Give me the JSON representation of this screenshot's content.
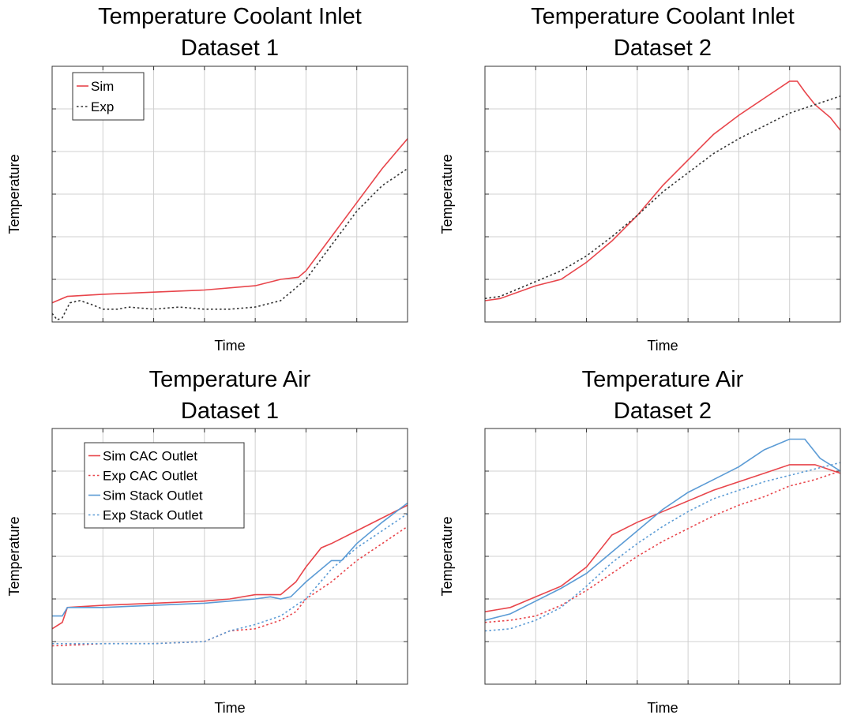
{
  "chart_data": [
    {
      "type": "line",
      "title": [
        "Temperature Coolant Inlet",
        "Dataset 1"
      ],
      "xlabel": "Time",
      "ylabel": "Temperature",
      "xlim": [
        0,
        7
      ],
      "ylim": [
        0,
        6
      ],
      "grid": true,
      "legend_position": "top-left",
      "series": [
        {
          "name": "Sim",
          "color": "#e8454b",
          "dash": "solid",
          "x": [
            0,
            0.3,
            1,
            2,
            3,
            4,
            4.5,
            4.85,
            5,
            5.5,
            6,
            6.5,
            7
          ],
          "y": [
            0.45,
            0.6,
            0.65,
            0.7,
            0.75,
            0.85,
            1.0,
            1.05,
            1.2,
            2.0,
            2.8,
            3.6,
            4.3
          ]
        },
        {
          "name": "Exp",
          "color": "#333333",
          "dash": "dotted",
          "x": [
            0,
            0.1,
            0.2,
            0.35,
            0.55,
            0.8,
            1.0,
            1.3,
            1.5,
            2,
            2.5,
            3,
            3.5,
            4,
            4.5,
            5,
            5.5,
            6,
            6.5,
            7
          ],
          "y": [
            0.2,
            0.05,
            0.1,
            0.45,
            0.5,
            0.4,
            0.3,
            0.3,
            0.35,
            0.3,
            0.35,
            0.3,
            0.3,
            0.35,
            0.5,
            1.0,
            1.8,
            2.6,
            3.2,
            3.6
          ]
        }
      ]
    },
    {
      "type": "line",
      "title": [
        "Temperature Coolant Inlet",
        "Dataset 2"
      ],
      "xlabel": "Time",
      "ylabel": "Temperature",
      "xlim": [
        0,
        7
      ],
      "ylim": [
        0,
        6
      ],
      "grid": true,
      "series": [
        {
          "name": "Sim",
          "color": "#e8454b",
          "dash": "solid",
          "x": [
            0,
            0.3,
            1,
            1.5,
            2,
            2.5,
            3,
            3.5,
            4,
            4.5,
            5,
            5.5,
            6,
            6.15,
            6.3,
            6.5,
            6.8,
            7
          ],
          "y": [
            0.5,
            0.55,
            0.85,
            1.0,
            1.4,
            1.9,
            2.5,
            3.2,
            3.8,
            4.4,
            4.85,
            5.25,
            5.65,
            5.65,
            5.4,
            5.1,
            4.8,
            4.5
          ]
        },
        {
          "name": "Exp",
          "color": "#333333",
          "dash": "dotted",
          "x": [
            0,
            0.3,
            1,
            1.5,
            2,
            2.5,
            3,
            3.5,
            4,
            4.5,
            5,
            5.5,
            6,
            6.5,
            7
          ],
          "y": [
            0.55,
            0.6,
            0.95,
            1.2,
            1.55,
            2.0,
            2.5,
            3.05,
            3.5,
            3.95,
            4.3,
            4.6,
            4.9,
            5.1,
            5.3
          ]
        }
      ]
    },
    {
      "type": "line",
      "title": [
        "Temperature Air",
        "Dataset 1"
      ],
      "xlabel": "Time",
      "ylabel": "Temperature",
      "xlim": [
        0,
        7
      ],
      "ylim": [
        0,
        6
      ],
      "grid": true,
      "legend_position": "top-left",
      "series": [
        {
          "name": "Sim CAC Outlet",
          "color": "#e8454b",
          "dash": "solid",
          "x": [
            0,
            0.2,
            0.3,
            1,
            2,
            3,
            3.5,
            4,
            4.5,
            4.8,
            5,
            5.3,
            5.5,
            6,
            6.5,
            7
          ],
          "y": [
            1.3,
            1.45,
            1.8,
            1.85,
            1.9,
            1.95,
            2.0,
            2.1,
            2.1,
            2.4,
            2.75,
            3.2,
            3.3,
            3.6,
            3.9,
            4.2
          ]
        },
        {
          "name": "Exp CAC Outlet",
          "color": "#e8454b",
          "dash": "dotted",
          "x": [
            0,
            1,
            2,
            3,
            3.5,
            4,
            4.5,
            4.8,
            5,
            5.5,
            6,
            6.5,
            7
          ],
          "y": [
            0.9,
            0.95,
            0.95,
            1.0,
            1.25,
            1.3,
            1.5,
            1.7,
            2.0,
            2.4,
            2.9,
            3.3,
            3.7
          ]
        },
        {
          "name": "Sim Stack Outlet",
          "color": "#5b9bd5",
          "dash": "solid",
          "x": [
            0,
            0.2,
            0.3,
            1,
            2,
            3,
            3.5,
            4,
            4.3,
            4.5,
            4.7,
            5,
            5.5,
            5.7,
            6,
            6.5,
            7
          ],
          "y": [
            1.6,
            1.6,
            1.8,
            1.8,
            1.85,
            1.9,
            1.95,
            2.0,
            2.05,
            2.0,
            2.05,
            2.4,
            2.9,
            2.9,
            3.3,
            3.8,
            4.25
          ]
        },
        {
          "name": "Exp Stack Outlet",
          "color": "#5b9bd5",
          "dash": "dotted",
          "x": [
            0,
            1,
            2,
            3,
            3.5,
            4,
            4.5,
            4.8,
            5,
            5.5,
            6,
            6.5,
            7
          ],
          "y": [
            0.95,
            0.95,
            0.95,
            1.0,
            1.25,
            1.4,
            1.6,
            1.85,
            2.0,
            2.7,
            3.2,
            3.6,
            4.0
          ]
        }
      ]
    },
    {
      "type": "line",
      "title": [
        "Temperature Air",
        "Dataset 2"
      ],
      "xlabel": "Time",
      "ylabel": "Temperature",
      "xlim": [
        0,
        7
      ],
      "ylim": [
        0,
        6
      ],
      "grid": true,
      "series": [
        {
          "name": "Sim CAC Outlet",
          "color": "#e8454b",
          "dash": "solid",
          "x": [
            0,
            0.5,
            1,
            1.5,
            2,
            2.5,
            3,
            3.5,
            4,
            4.5,
            5,
            5.5,
            6,
            6.5,
            7
          ],
          "y": [
            1.7,
            1.8,
            2.05,
            2.3,
            2.75,
            3.5,
            3.8,
            4.05,
            4.3,
            4.55,
            4.75,
            4.95,
            5.15,
            5.15,
            4.95
          ]
        },
        {
          "name": "Exp CAC Outlet",
          "color": "#e8454b",
          "dash": "dotted",
          "x": [
            0,
            0.5,
            1,
            1.5,
            2,
            2.5,
            3,
            3.5,
            4,
            4.5,
            5,
            5.5,
            6,
            6.5,
            7
          ],
          "y": [
            1.45,
            1.5,
            1.6,
            1.85,
            2.2,
            2.6,
            3.0,
            3.35,
            3.65,
            3.95,
            4.2,
            4.4,
            4.65,
            4.8,
            5.0
          ]
        },
        {
          "name": "Sim Stack Outlet",
          "color": "#5b9bd5",
          "dash": "solid",
          "x": [
            0,
            0.5,
            1,
            1.5,
            2,
            2.5,
            3,
            3.5,
            4,
            4.5,
            5,
            5.5,
            6,
            6.3,
            6.6,
            7
          ],
          "y": [
            1.5,
            1.65,
            1.95,
            2.25,
            2.6,
            3.1,
            3.6,
            4.1,
            4.5,
            4.8,
            5.1,
            5.5,
            5.75,
            5.75,
            5.3,
            5.0
          ]
        },
        {
          "name": "Exp Stack Outlet",
          "color": "#5b9bd5",
          "dash": "dotted",
          "x": [
            0,
            0.5,
            1,
            1.5,
            2,
            2.5,
            3,
            3.5,
            4,
            4.5,
            5,
            5.5,
            6,
            6.5,
            7
          ],
          "y": [
            1.25,
            1.3,
            1.5,
            1.8,
            2.3,
            2.85,
            3.3,
            3.7,
            4.05,
            4.35,
            4.55,
            4.75,
            4.9,
            5.05,
            5.2
          ]
        }
      ]
    }
  ]
}
